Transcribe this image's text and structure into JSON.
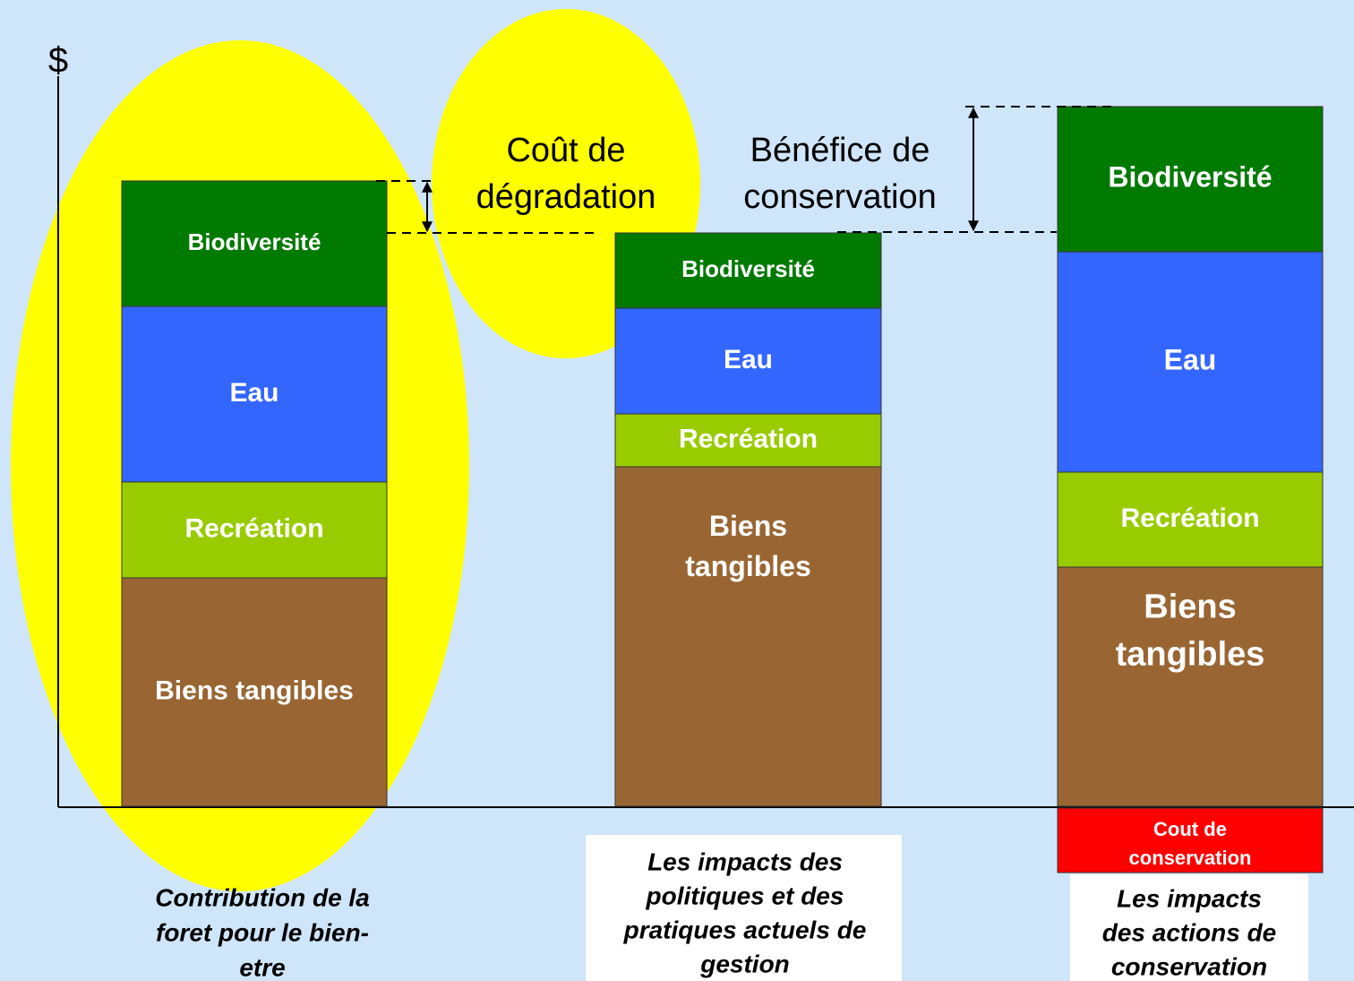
{
  "axis_label": "$",
  "annotations": {
    "degradation": [
      "Coût de",
      "dégradation"
    ],
    "benefit": [
      "Bénéfice  de",
      "conservation"
    ]
  },
  "bars": [
    {
      "segments": [
        [
          "Biodiversité"
        ],
        [
          "Eau"
        ],
        [
          "Recréation"
        ],
        [
          "Biens tangibles"
        ]
      ],
      "caption": [
        "Contribution de la",
        "foret pour le bien-",
        "etre"
      ]
    },
    {
      "segments": [
        [
          "Biodiversité"
        ],
        [
          "Eau"
        ],
        [
          "Recréation"
        ],
        [
          "Biens",
          "tangibles"
        ]
      ],
      "caption": [
        "Les impacts des",
        "politiques et des",
        "pratiques actuels de",
        "gestion"
      ]
    },
    {
      "segments": [
        [
          "Biodiversité"
        ],
        [
          "Eau"
        ],
        [
          "Recréation"
        ],
        [
          "Biens",
          "tangibles"
        ]
      ],
      "cost": [
        "Cout de",
        "conservation"
      ],
      "caption": [
        "Les impacts",
        "des actions de",
        "conservation"
      ]
    }
  ]
}
